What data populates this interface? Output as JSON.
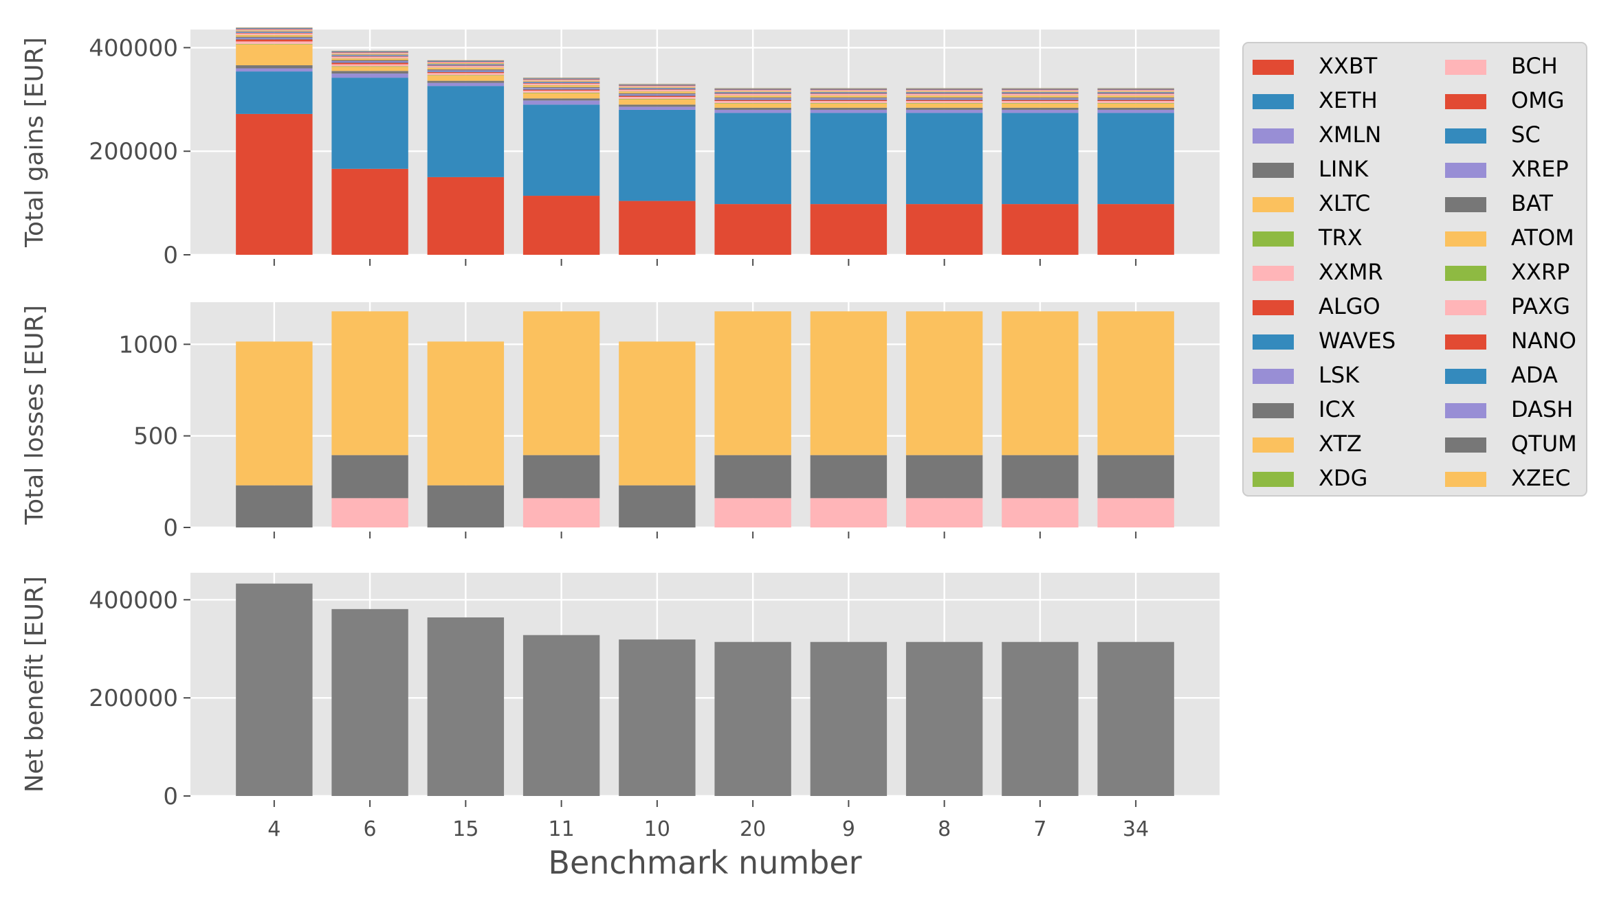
{
  "chart_data": [
    {
      "type": "bar",
      "stacked": true,
      "ylabel": "Total gains [EUR]",
      "ylim": [
        0,
        435000
      ],
      "yticks": [
        0,
        200000,
        400000
      ],
      "ytick_labels": [
        "0",
        "200000",
        "400000"
      ],
      "grid": true,
      "categories": [
        "4",
        "6",
        "15",
        "11",
        "10",
        "20",
        "9",
        "8",
        "7",
        "34"
      ],
      "series": [
        {
          "name": "XXBT",
          "values": [
            272000,
            166000,
            150000,
            114000,
            104000,
            98000,
            98000,
            98000,
            98000,
            98000
          ]
        },
        {
          "name": "XETH",
          "values": [
            82000,
            176000,
            176000,
            176000,
            176000,
            176000,
            176000,
            176000,
            176000,
            176000
          ]
        },
        {
          "name": "XMLN",
          "values": [
            6000,
            8000,
            6000,
            8000,
            6000,
            6000,
            6000,
            6000,
            6000,
            6000
          ]
        },
        {
          "name": "LINK",
          "values": [
            6000,
            5000,
            4000,
            4000,
            4000,
            4000,
            4000,
            4000,
            4000,
            4000
          ]
        },
        {
          "name": "XLTC",
          "values": [
            40000,
            8000,
            10000,
            10000,
            10000,
            8000,
            8000,
            8000,
            8000,
            8000
          ]
        },
        {
          "name": "TRX",
          "values": [
            1000,
            1000,
            1000,
            1000,
            1000,
            1000,
            1000,
            1000,
            1000,
            1000
          ]
        },
        {
          "name": "XXMR",
          "values": [
            5000,
            4000,
            4000,
            4000,
            4000,
            4000,
            4000,
            4000,
            4000,
            4000
          ]
        },
        {
          "name": "ALGO",
          "values": [
            4000,
            3000,
            2000,
            2000,
            2000,
            2000,
            2000,
            2000,
            2000,
            2000
          ]
        },
        {
          "name": "WAVES",
          "values": [
            1000,
            1000,
            1000,
            1000,
            1000,
            1000,
            1000,
            1000,
            1000,
            1000
          ]
        },
        {
          "name": "LSK",
          "values": [
            2000,
            2000,
            2000,
            2000,
            2000,
            2000,
            2000,
            2000,
            2000,
            2000
          ]
        },
        {
          "name": "ICX",
          "values": [
            2000,
            2000,
            2000,
            2000,
            2000,
            2000,
            2000,
            2000,
            2000,
            2000
          ]
        },
        {
          "name": "XTZ",
          "values": [
            3000,
            3000,
            3000,
            3000,
            3000,
            3000,
            3000,
            3000,
            3000,
            3000
          ]
        },
        {
          "name": "XDG",
          "values": [
            500,
            500,
            500,
            500,
            500,
            500,
            500,
            500,
            500,
            500
          ]
        },
        {
          "name": "BCH",
          "values": [
            3000,
            3000,
            3000,
            3000,
            3000,
            3000,
            3000,
            3000,
            3000,
            3000
          ]
        },
        {
          "name": "OMG",
          "values": [
            1000,
            1000,
            1000,
            1000,
            1000,
            1000,
            1000,
            1000,
            1000,
            1000
          ]
        },
        {
          "name": "SC",
          "values": [
            1000,
            1000,
            1000,
            1000,
            1000,
            1000,
            1000,
            1000,
            1000,
            1000
          ]
        },
        {
          "name": "XREP",
          "values": [
            1000,
            1000,
            1000,
            1000,
            1000,
            1000,
            1000,
            1000,
            1000,
            1000
          ]
        },
        {
          "name": "BAT",
          "values": [
            1000,
            1000,
            1000,
            1000,
            1000,
            1000,
            1000,
            1000,
            1000,
            1000
          ]
        },
        {
          "name": "ATOM",
          "values": [
            1000,
            1000,
            1000,
            1000,
            1000,
            1000,
            1000,
            1000,
            1000,
            1000
          ]
        },
        {
          "name": "XXRP",
          "values": [
            500,
            500,
            500,
            500,
            500,
            500,
            500,
            500,
            500,
            500
          ]
        },
        {
          "name": "PAXG",
          "values": [
            2000,
            2000,
            2000,
            2000,
            2000,
            2000,
            2000,
            2000,
            2000,
            2000
          ]
        },
        {
          "name": "NANO",
          "values": [
            1000,
            1000,
            1000,
            1000,
            1000,
            1000,
            1000,
            1000,
            1000,
            1000
          ]
        },
        {
          "name": "ADA",
          "values": [
            1000,
            1000,
            1000,
            1000,
            1000,
            1000,
            1000,
            1000,
            1000,
            1000
          ]
        },
        {
          "name": "DASH",
          "values": [
            500,
            500,
            500,
            500,
            500,
            500,
            500,
            500,
            500,
            500
          ]
        },
        {
          "name": "QTUM",
          "values": [
            1000,
            1000,
            1000,
            1000,
            1000,
            1000,
            1000,
            1000,
            1000,
            1000
          ]
        },
        {
          "name": "XZEC",
          "values": [
            500,
            500,
            500,
            500,
            500,
            500,
            500,
            500,
            500,
            500
          ]
        }
      ]
    },
    {
      "type": "bar",
      "stacked": true,
      "ylabel": "Total losses [EUR]",
      "ylim": [
        0,
        1230
      ],
      "yticks": [
        0,
        500,
        1000
      ],
      "ytick_labels": [
        "0",
        "500",
        "1000"
      ],
      "grid": true,
      "categories": [
        "4",
        "6",
        "15",
        "11",
        "10",
        "20",
        "9",
        "8",
        "7",
        "34"
      ],
      "series": [
        {
          "name": "XXMR",
          "values": [
            0,
            160,
            0,
            160,
            0,
            160,
            160,
            160,
            160,
            160
          ]
        },
        {
          "name": "ICX",
          "values": [
            230,
            235,
            230,
            235,
            230,
            235,
            235,
            235,
            235,
            235
          ]
        },
        {
          "name": "XTZ",
          "values": [
            785,
            785,
            785,
            785,
            785,
            785,
            785,
            785,
            785,
            785
          ]
        }
      ]
    },
    {
      "type": "bar",
      "ylabel": "Net benefit [EUR]",
      "xlabel": "Benchmark number",
      "ylim": [
        0,
        455000
      ],
      "yticks": [
        0,
        200000,
        400000
      ],
      "ytick_labels": [
        "0",
        "200000",
        "400000"
      ],
      "grid": true,
      "categories": [
        "4",
        "6",
        "15",
        "11",
        "10",
        "20",
        "9",
        "8",
        "7",
        "34"
      ],
      "series": [
        {
          "name": "",
          "values": [
            433000,
            381000,
            364000,
            328000,
            319000,
            314000,
            314000,
            314000,
            314000,
            314000
          ]
        }
      ]
    }
  ],
  "legend": {
    "placement": "right",
    "columns": 2,
    "entries": [
      "XXBT",
      "XETH",
      "XMLN",
      "LINK",
      "XLTC",
      "TRX",
      "XXMR",
      "ALGO",
      "WAVES",
      "LSK",
      "ICX",
      "XTZ",
      "XDG",
      "BCH",
      "OMG",
      "SC",
      "XREP",
      "BAT",
      "ATOM",
      "XXRP",
      "PAXG",
      "NANO",
      "ADA",
      "DASH",
      "QTUM",
      "XZEC"
    ]
  },
  "colors": {
    "XXBT": "#e24a33",
    "XETH": "#348abd",
    "XMLN": "#988ed5",
    "LINK": "#777777",
    "XLTC": "#fbc15e",
    "TRX": "#8eba42",
    "XXMR": "#ffb5b8",
    "ALGO": "#e24a33",
    "WAVES": "#348abd",
    "LSK": "#988ed5",
    "ICX": "#777777",
    "XTZ": "#fbc15e",
    "XDG": "#8eba42",
    "BCH": "#ffb5b8",
    "OMG": "#e24a33",
    "SC": "#348abd",
    "XREP": "#988ed5",
    "BAT": "#777777",
    "ATOM": "#fbc15e",
    "XXRP": "#8eba42",
    "PAXG": "#ffb5b8",
    "NANO": "#e24a33",
    "ADA": "#348abd",
    "DASH": "#988ed5",
    "QTUM": "#777777",
    "XZEC": "#fbc15e",
    "net": "#808080",
    "panel_bg": "#e5e5e5",
    "grid": "#ffffff",
    "text": "#4d4d4d"
  }
}
